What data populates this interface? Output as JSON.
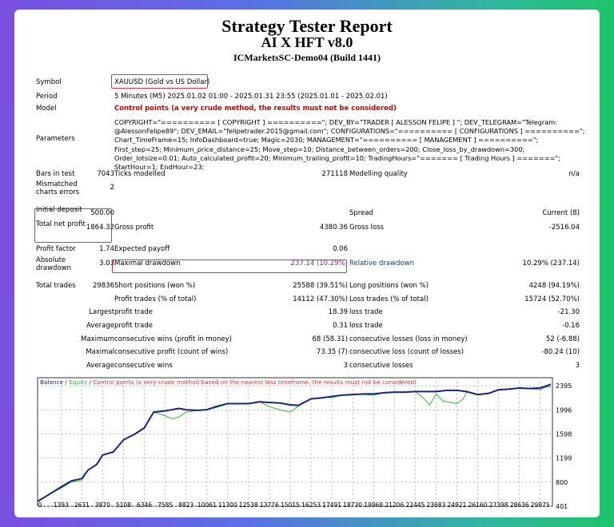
{
  "header": {
    "title": "Strategy Tester Report",
    "ea_name": "AI X HFT v8.0",
    "server": "ICMarketsSC-Demo04 (Build 1441)"
  },
  "info": {
    "symbol_label": "Symbol",
    "symbol": "XAUUSD (Gold vs US Dollar)",
    "period_label": "Period",
    "period": "5 Minutes (M5) 2025.01.02 01:00 - 2025.01.31 23:55 (2025.01.01 - 2025.02.01)",
    "model_label": "Model",
    "model": "Control points (a very crude method, the results must not be considered)",
    "parameters_label": "Parameters",
    "parameters": "COPYRIGHT=\"========== [ COPYRIGHT ] ==========\"; DEV_BY=\"TRADER [ ALESSON FELIPE ] \"; DEV_TELEGRAM=\"Telegram: @AlessonFelipe89\"; DEV_EMAIL=\"felipetrader.2015@gmail.com\"; CONFIGURATIONS=\"========== [ CONFIGURATIONS ] ==========\"; Chart_TimeFrame=15; InfoDashboard=true; Magic=2030; MANAGEMENT=\"========== [ MANAGEMENT ] ==========\"; First_step=25; Minimum_price_distance=25; Move_step=10; Distance_between_orders=200; Close_loss_by_drawdown=300; Order_lotsize=0.01; Auto_calculated_profit=20; Minimum_trailing_profit=10; TradingHours=\"======= [ Trading Hours ] =======\"; StartHour=1; EndHour=23;"
  },
  "stats": [
    [
      "Bars in test",
      "7043",
      "Ticks modelled",
      "271118",
      "Modelling quality",
      "n/a"
    ],
    [
      "Mismatched charts errors",
      "2",
      "",
      "",
      "",
      ""
    ],
    [
      "Initial deposit",
      "500.00",
      "",
      "",
      "Spread",
      "Current (8)"
    ],
    [
      "Total net profit",
      "1864.32",
      "Gross profit",
      "4380.36",
      "Gross loss",
      "-2516.04"
    ],
    [
      "Profit factor",
      "1.74",
      "Expected payoff",
      "0.06",
      "",
      ""
    ],
    [
      "Absolute drawdown",
      "3.03",
      "Maximal drawdown",
      "237.14 (10.29%)",
      "Relative drawdown",
      "10.29% (237.14)"
    ],
    [
      "Total trades",
      "29836",
      "Short positions (won %)",
      "25588 (39.51%)",
      "Long positions (won %)",
      "4248 (94.19%)"
    ],
    [
      "",
      "",
      "Profit trades (% of total)",
      "14112 (47.30%)",
      "Loss trades (% of total)",
      "15724 (52.70%)"
    ],
    [
      "",
      "Largest",
      "profit trade",
      "18.39",
      "loss trade",
      "-21.30"
    ],
    [
      "",
      "Average",
      "profit trade",
      "0.31",
      "loss trade",
      "-0.16"
    ],
    [
      "",
      "Maximum",
      "consecutive wins (profit in money)",
      "68 (58.31)",
      "consecutive losses (loss in money)",
      "52 (-6.88)"
    ],
    [
      "",
      "Maximal",
      "consecutive profit (count of wins)",
      "73.35 (7)",
      "consecutive loss (count of losses)",
      "-80.24 (10)"
    ],
    [
      "",
      "Average",
      "consecutive wins",
      "3",
      "consecutive losses",
      "3"
    ]
  ],
  "chart_data": {
    "type": "line",
    "legend": {
      "balance": "Balance",
      "sep1": " / ",
      "equity": "Equity",
      "sep2": " / ",
      "control": "Control points (a very crude method based on the nearest less timeframe, the results must not be considered)"
    },
    "x_ticks": [
      "0",
      "1393",
      "2631",
      "3870",
      "5108",
      "6346",
      "7585",
      "8823",
      "10061",
      "11300",
      "12538",
      "13776",
      "15015",
      "16253",
      "17491",
      "18730",
      "19968",
      "21206",
      "22445",
      "23683",
      "24921",
      "26160",
      "27398",
      "28636",
      "29875"
    ],
    "y_ticks": [
      "2395",
      "1996",
      "1598",
      "1199",
      "800",
      "401"
    ],
    "xlim": [
      0,
      30600
    ],
    "ylim": [
      401,
      2530
    ],
    "colors": {
      "balance": "#1a237e",
      "equity": "#2eb82e",
      "control": "#e03030"
    },
    "series": [
      {
        "name": "Balance",
        "x": [
          0,
          700,
          1393,
          2000,
          2631,
          3000,
          3500,
          3870,
          4500,
          5108,
          5800,
          6346,
          6900,
          7585,
          8400,
          8823,
          9500,
          10061,
          10700,
          11300,
          12000,
          12538,
          13200,
          13776,
          14400,
          15015,
          15500,
          16253,
          17000,
          17491,
          18100,
          18730,
          19400,
          19968,
          20600,
          21206,
          21800,
          22445,
          23000,
          23683,
          24300,
          24921,
          25500,
          26160,
          26800,
          27398,
          28000,
          28636,
          29200,
          29875,
          30300,
          30500
        ],
        "y": [
          480,
          600,
          720,
          820,
          860,
          1000,
          1090,
          1250,
          1300,
          1500,
          1600,
          1700,
          1960,
          1980,
          2020,
          2000,
          1990,
          2000,
          2060,
          2100,
          2100,
          2100,
          2130,
          2120,
          2110,
          2080,
          2070,
          2180,
          2200,
          2220,
          2240,
          2250,
          2260,
          2260,
          2280,
          2290,
          2290,
          2300,
          2300,
          2300,
          2320,
          2320,
          2300,
          2250,
          2270,
          2330,
          2340,
          2360,
          2350,
          2360,
          2400,
          2420
        ]
      },
      {
        "name": "Equity",
        "x": [
          0,
          700,
          1393,
          2000,
          2631,
          3000,
          3500,
          3870,
          4500,
          5108,
          5800,
          6346,
          6900,
          7585,
          8000,
          8400,
          8823,
          9500,
          10061,
          10700,
          11300,
          12000,
          12538,
          13200,
          13776,
          14400,
          15015,
          15500,
          16253,
          17000,
          17491,
          18100,
          18730,
          19400,
          19968,
          20600,
          21206,
          21800,
          22445,
          22900,
          23300,
          23683,
          24100,
          24600,
          24921,
          25300,
          25500,
          26160,
          26800,
          27398,
          28000,
          28636,
          29200,
          29875,
          30300,
          30500
        ],
        "y": [
          480,
          600,
          700,
          800,
          830,
          1000,
          1090,
          1250,
          1300,
          1500,
          1600,
          1700,
          1960,
          1900,
          1850,
          1880,
          1960,
          1990,
          2000,
          2040,
          2100,
          2100,
          2100,
          2130,
          2050,
          2000,
          1960,
          2060,
          2180,
          2200,
          2200,
          2240,
          2250,
          2250,
          2240,
          2280,
          2290,
          2290,
          2300,
          2200,
          2080,
          2260,
          2140,
          2120,
          2100,
          2180,
          2290,
          2250,
          2270,
          2330,
          2340,
          2360,
          2350,
          2330,
          2380,
          2380
        ]
      }
    ]
  }
}
